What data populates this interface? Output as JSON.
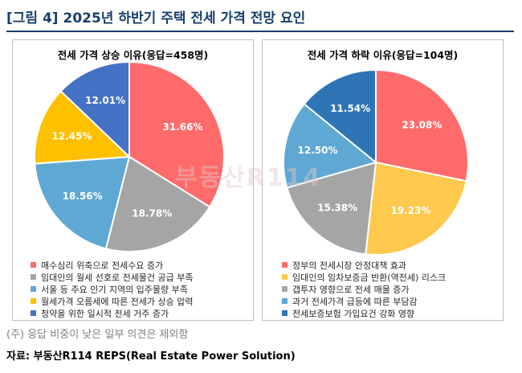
{
  "figure_title": "[그림 4] 2025년 하반기 주택 전세 가격 전망 요인",
  "watermark_text": "부동산R114",
  "note": "(주) 응답 비중이 낮은 일부 의견은 제외함",
  "source": "자료: 부동산R114 REPS(Real Estate Power Solution)",
  "chart_data": [
    {
      "type": "pie",
      "title": "전세 가격 상승 이유(응답=458명)",
      "start_angle_deg": 0,
      "direction": "clockwise",
      "slices": [
        {
          "label": "매수심리 위축으로 전세수요 증가",
          "value": 31.66,
          "display": "31.66%",
          "color": "#ff6b6b"
        },
        {
          "label": "임대인의 월세 선호로 전세물건 공급 부족",
          "value": 18.78,
          "display": "18.78%",
          "color": "#a5a5a5"
        },
        {
          "label": "서울 등 주요 인기 지역의 입주물량 부족",
          "value": 18.56,
          "display": "18.56%",
          "color": "#5fa8d3"
        },
        {
          "label": "월세가격 오름세에 따른 전세가 상승 압력",
          "value": 12.45,
          "display": "12.45%",
          "color": "#ffc000"
        },
        {
          "label": "청약을 위한 일시적 전세 거주 증가",
          "value": 12.01,
          "display": "12.01%",
          "color": "#4472c4"
        }
      ]
    },
    {
      "type": "pie",
      "title": "전세 가격 하락 이유(응답=104명)",
      "start_angle_deg": 0,
      "direction": "clockwise",
      "slices": [
        {
          "label": "정부의 전세시장 안정대책 효과",
          "value": 23.08,
          "display": "23.08%",
          "color": "#ff6b6b"
        },
        {
          "label": "임대인의 임차보증금 반환(역전세) 리스크",
          "value": 19.23,
          "display": "19.23%",
          "color": "#ffc94d"
        },
        {
          "label": "갭투자 영향으로 전세 매물 증가",
          "value": 15.38,
          "display": "15.38%",
          "color": "#a5a5a5"
        },
        {
          "label": "과거 전세가격 급등에 따른 부담감",
          "value": 12.5,
          "display": "12.50%",
          "color": "#5fa8d3"
        },
        {
          "label": "전세보증보험 가입요건 강화 영향",
          "value": 11.54,
          "display": "11.54%",
          "color": "#2e75b6"
        }
      ]
    }
  ]
}
